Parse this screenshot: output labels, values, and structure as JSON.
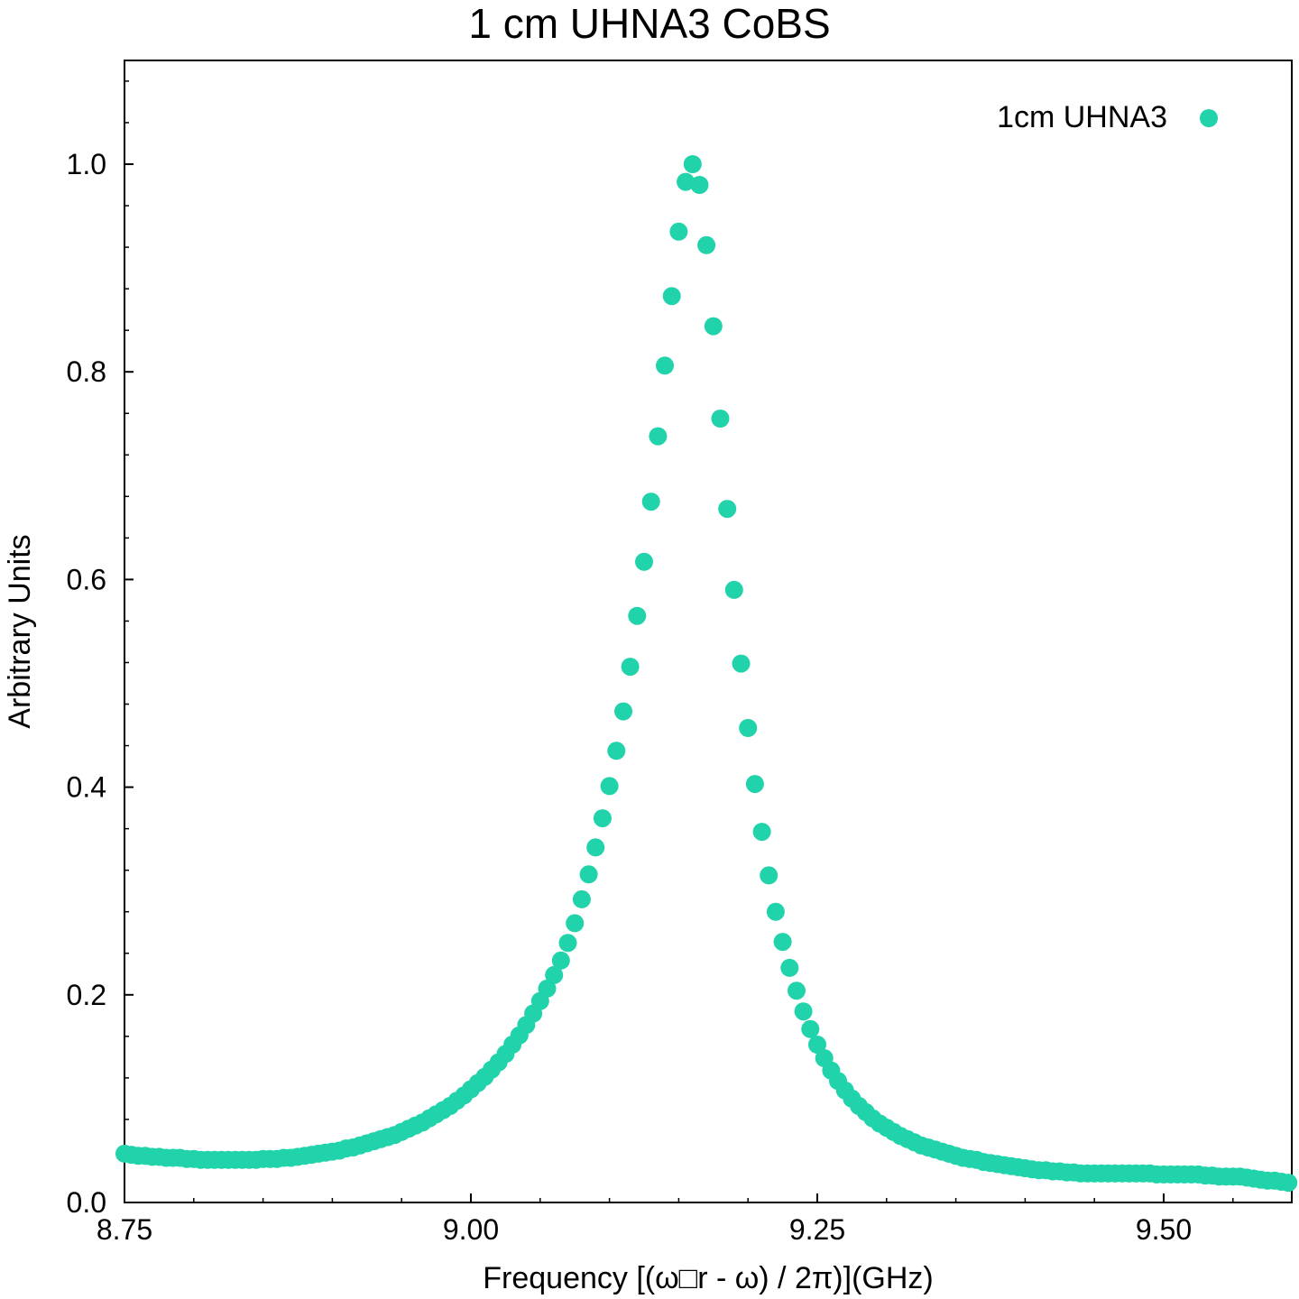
{
  "chart_data": {
    "type": "scatter",
    "title": "1 cm UHNA3 CoBS",
    "xlabel": "Frequency [(ω□r - ω) / 2π)](GHz)",
    "ylabel": "Arbitrary Units",
    "xlim": [
      8.75,
      9.59
    ],
    "ylim": [
      0.0,
      1.1
    ],
    "xticks": [
      8.75,
      9.0,
      9.25,
      9.5
    ],
    "xtick_labels": [
      "8.75",
      "9.00",
      "9.25",
      "9.50"
    ],
    "yticks": [
      0.0,
      0.2,
      0.4,
      0.6,
      0.8,
      1.0
    ],
    "ytick_labels": [
      "0.0",
      "0.2",
      "0.4",
      "0.6",
      "0.8",
      "1.0"
    ],
    "grid": false,
    "legend_position": "top-right",
    "series": [
      {
        "name": "1cm UHNA3",
        "color": "#20d3aa",
        "points": [
          [
            8.75,
            0.047
          ],
          [
            8.755,
            0.046
          ],
          [
            8.76,
            0.045
          ],
          [
            8.765,
            0.045
          ],
          [
            8.77,
            0.044
          ],
          [
            8.775,
            0.044
          ],
          [
            8.78,
            0.043
          ],
          [
            8.785,
            0.043
          ],
          [
            8.79,
            0.043
          ],
          [
            8.795,
            0.042
          ],
          [
            8.8,
            0.042
          ],
          [
            8.805,
            0.041
          ],
          [
            8.81,
            0.041
          ],
          [
            8.815,
            0.041
          ],
          [
            8.82,
            0.041
          ],
          [
            8.825,
            0.041
          ],
          [
            8.83,
            0.041
          ],
          [
            8.835,
            0.041
          ],
          [
            8.84,
            0.041
          ],
          [
            8.845,
            0.041
          ],
          [
            8.85,
            0.042
          ],
          [
            8.855,
            0.042
          ],
          [
            8.86,
            0.042
          ],
          [
            8.865,
            0.043
          ],
          [
            8.87,
            0.043
          ],
          [
            8.875,
            0.044
          ],
          [
            8.88,
            0.045
          ],
          [
            8.885,
            0.046
          ],
          [
            8.89,
            0.047
          ],
          [
            8.895,
            0.048
          ],
          [
            8.9,
            0.049
          ],
          [
            8.905,
            0.05
          ],
          [
            8.91,
            0.052
          ],
          [
            8.915,
            0.053
          ],
          [
            8.92,
            0.055
          ],
          [
            8.925,
            0.057
          ],
          [
            8.93,
            0.059
          ],
          [
            8.935,
            0.061
          ],
          [
            8.94,
            0.063
          ],
          [
            8.945,
            0.065
          ],
          [
            8.95,
            0.068
          ],
          [
            8.955,
            0.071
          ],
          [
            8.96,
            0.074
          ],
          [
            8.965,
            0.077
          ],
          [
            8.97,
            0.081
          ],
          [
            8.975,
            0.085
          ],
          [
            8.98,
            0.089
          ],
          [
            8.985,
            0.093
          ],
          [
            8.99,
            0.098
          ],
          [
            8.995,
            0.103
          ],
          [
            9.0,
            0.109
          ],
          [
            9.005,
            0.115
          ],
          [
            9.01,
            0.121
          ],
          [
            9.015,
            0.128
          ],
          [
            9.02,
            0.135
          ],
          [
            9.025,
            0.143
          ],
          [
            9.03,
            0.152
          ],
          [
            9.035,
            0.161
          ],
          [
            9.04,
            0.171
          ],
          [
            9.045,
            0.182
          ],
          [
            9.05,
            0.194
          ],
          [
            9.055,
            0.206
          ],
          [
            9.06,
            0.219
          ],
          [
            9.065,
            0.233
          ],
          [
            9.07,
            0.25
          ],
          [
            9.075,
            0.269
          ],
          [
            9.08,
            0.292
          ],
          [
            9.085,
            0.316
          ],
          [
            9.09,
            0.342
          ],
          [
            9.095,
            0.37
          ],
          [
            9.1,
            0.401
          ],
          [
            9.105,
            0.435
          ],
          [
            9.11,
            0.473
          ],
          [
            9.115,
            0.516
          ],
          [
            9.12,
            0.565
          ],
          [
            9.125,
            0.617
          ],
          [
            9.13,
            0.675
          ],
          [
            9.135,
            0.738
          ],
          [
            9.14,
            0.806
          ],
          [
            9.145,
            0.873
          ],
          [
            9.15,
            0.935
          ],
          [
            9.155,
            0.983
          ],
          [
            9.16,
            1.0
          ],
          [
            9.165,
            0.98
          ],
          [
            9.17,
            0.922
          ],
          [
            9.175,
            0.844
          ],
          [
            9.18,
            0.755
          ],
          [
            9.185,
            0.668
          ],
          [
            9.19,
            0.59
          ],
          [
            9.195,
            0.519
          ],
          [
            9.2,
            0.457
          ],
          [
            9.205,
            0.403
          ],
          [
            9.21,
            0.357
          ],
          [
            9.215,
            0.315
          ],
          [
            9.22,
            0.28
          ],
          [
            9.225,
            0.251
          ],
          [
            9.23,
            0.226
          ],
          [
            9.235,
            0.204
          ],
          [
            9.24,
            0.184
          ],
          [
            9.245,
            0.167
          ],
          [
            9.25,
            0.152
          ],
          [
            9.255,
            0.139
          ],
          [
            9.26,
            0.127
          ],
          [
            9.265,
            0.117
          ],
          [
            9.27,
            0.108
          ],
          [
            9.275,
            0.1
          ],
          [
            9.28,
            0.093
          ],
          [
            9.285,
            0.087
          ],
          [
            9.29,
            0.081
          ],
          [
            9.295,
            0.076
          ],
          [
            9.3,
            0.072
          ],
          [
            9.305,
            0.068
          ],
          [
            9.31,
            0.064
          ],
          [
            9.315,
            0.061
          ],
          [
            9.32,
            0.058
          ],
          [
            9.325,
            0.055
          ],
          [
            9.33,
            0.053
          ],
          [
            9.335,
            0.051
          ],
          [
            9.34,
            0.049
          ],
          [
            9.345,
            0.047
          ],
          [
            9.35,
            0.045
          ],
          [
            9.355,
            0.043
          ],
          [
            9.36,
            0.042
          ],
          [
            9.365,
            0.041
          ],
          [
            9.37,
            0.039
          ],
          [
            9.375,
            0.038
          ],
          [
            9.38,
            0.037
          ],
          [
            9.385,
            0.036
          ],
          [
            9.39,
            0.035
          ],
          [
            9.395,
            0.034
          ],
          [
            9.4,
            0.033
          ],
          [
            9.405,
            0.032
          ],
          [
            9.41,
            0.031
          ],
          [
            9.415,
            0.031
          ],
          [
            9.42,
            0.03
          ],
          [
            9.425,
            0.03
          ],
          [
            9.43,
            0.029
          ],
          [
            9.435,
            0.029
          ],
          [
            9.44,
            0.028
          ],
          [
            9.445,
            0.028
          ],
          [
            9.45,
            0.028
          ],
          [
            9.455,
            0.028
          ],
          [
            9.46,
            0.028
          ],
          [
            9.465,
            0.028
          ],
          [
            9.47,
            0.028
          ],
          [
            9.475,
            0.028
          ],
          [
            9.48,
            0.028
          ],
          [
            9.485,
            0.028
          ],
          [
            9.49,
            0.028
          ],
          [
            9.495,
            0.027
          ],
          [
            9.5,
            0.027
          ],
          [
            9.505,
            0.027
          ],
          [
            9.51,
            0.027
          ],
          [
            9.515,
            0.027
          ],
          [
            9.52,
            0.027
          ],
          [
            9.525,
            0.027
          ],
          [
            9.53,
            0.026
          ],
          [
            9.535,
            0.026
          ],
          [
            9.54,
            0.025
          ],
          [
            9.545,
            0.025
          ],
          [
            9.55,
            0.025
          ],
          [
            9.555,
            0.025
          ],
          [
            9.56,
            0.024
          ],
          [
            9.565,
            0.023
          ],
          [
            9.57,
            0.022
          ],
          [
            9.575,
            0.021
          ],
          [
            9.58,
            0.021
          ],
          [
            9.585,
            0.02
          ],
          [
            9.59,
            0.019
          ]
        ]
      }
    ]
  }
}
